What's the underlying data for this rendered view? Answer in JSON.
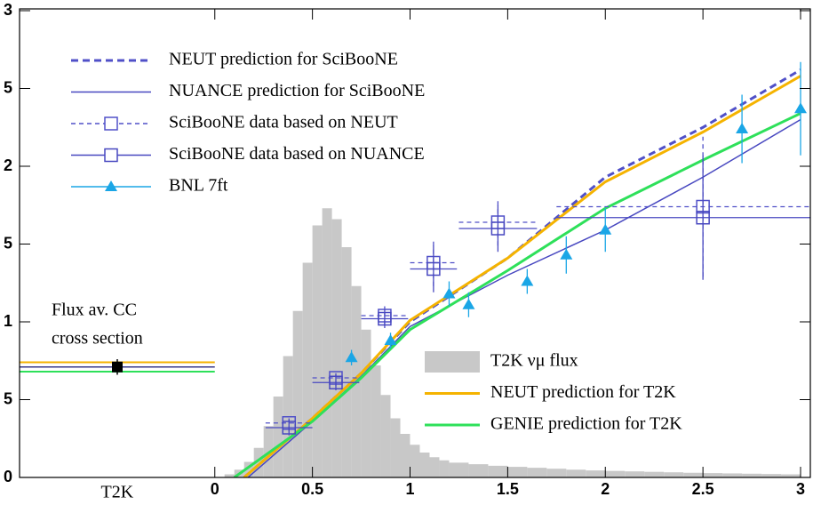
{
  "chart_data": {
    "type": "line",
    "xlim": [
      -1,
      3.05
    ],
    "xticks": [
      0,
      0.5,
      1,
      1.5,
      2,
      2.5,
      3
    ],
    "ylim": [
      0,
      3
    ],
    "yticks": [
      0,
      {
        "value": 0.5,
        "label": "5"
      },
      1,
      {
        "value": 1.5,
        "label": "5"
      },
      2,
      {
        "value": 2.5,
        "label": "5"
      },
      3
    ],
    "flux_average": {
      "category": "T2K",
      "annotation": [
        "Flux av. CC",
        "cross section"
      ],
      "value": 0.71,
      "error": 0.05,
      "color": "#000000"
    },
    "series": [
      {
        "name": "NEUT prediction for SciBooNE",
        "kind": "line",
        "dashed": true,
        "color": "#5050c8",
        "legend": "upper left",
        "x": [
          0.15,
          0.5,
          0.75,
          1.0,
          1.5,
          2.0,
          2.5,
          3.0
        ],
        "values": [
          0,
          0.38,
          0.67,
          1.0,
          1.41,
          1.93,
          2.25,
          2.62
        ]
      },
      {
        "name": "NUANCE prediction for SciBooNE",
        "kind": "line",
        "dashed": false,
        "color": "#4848c0",
        "legend": "upper left",
        "x": [
          0.17,
          0.5,
          0.75,
          1.0,
          1.5,
          2.0,
          2.5,
          3.0
        ],
        "values": [
          0,
          0.36,
          0.65,
          0.97,
          1.3,
          1.59,
          1.93,
          2.3
        ]
      },
      {
        "name": "SciBooNE data based on NEUT",
        "kind": "errorbar",
        "marker": "square",
        "dashed": true,
        "color": "#5050c8",
        "legend": "upper left",
        "x": [
          0.38,
          0.62,
          0.87,
          1.12,
          1.45,
          2.5
        ],
        "values": [
          0.35,
          0.64,
          1.04,
          1.38,
          1.64,
          1.74
        ],
        "xerr": [
          0.12,
          0.12,
          0.12,
          0.12,
          0.2,
          0.75
        ],
        "yerr": [
          0.05,
          0.05,
          0.06,
          0.15,
          0.15,
          0.45
        ]
      },
      {
        "name": "SciBooNE data based on NUANCE",
        "kind": "errorbar",
        "marker": "square",
        "dashed": false,
        "color": "#4848c0",
        "legend": "upper left",
        "x": [
          0.38,
          0.62,
          0.87,
          1.12,
          1.45,
          2.5
        ],
        "values": [
          0.32,
          0.61,
          1.02,
          1.34,
          1.6,
          1.67
        ],
        "xerr": [
          0.12,
          0.12,
          0.12,
          0.12,
          0.2,
          0.75
        ],
        "yerr": [
          0.05,
          0.05,
          0.06,
          0.15,
          0.15,
          0.4
        ]
      },
      {
        "name": "BNL 7ft",
        "kind": "errorbar",
        "marker": "triangle",
        "dashed": false,
        "color": "#1aa6e6",
        "legend": "upper left",
        "x": [
          0.7,
          0.9,
          1.2,
          1.3,
          1.6,
          1.8,
          2.0,
          2.7,
          3.0
        ],
        "values": [
          0.77,
          0.88,
          1.18,
          1.11,
          1.26,
          1.43,
          1.59,
          2.24,
          2.37
        ],
        "xerr": [
          0,
          0,
          0,
          0,
          0,
          0,
          0,
          0,
          0
        ],
        "yerr": [
          0.05,
          0.05,
          0.08,
          0.08,
          0.08,
          0.12,
          0.14,
          0.22,
          0.3
        ]
      },
      {
        "name": "T2K νμ flux",
        "kind": "hist",
        "color": "#c8c8c8",
        "legend": "lower right",
        "bins": [
          0,
          0.05,
          0.1,
          0.15,
          0.2,
          0.25,
          0.3,
          0.35,
          0.4,
          0.45,
          0.5,
          0.55,
          0.6,
          0.65,
          0.7,
          0.75,
          0.8,
          0.85,
          0.9,
          0.95,
          1.0,
          1.05,
          1.1,
          1.15,
          1.2,
          1.3,
          1.4,
          1.5,
          1.6,
          1.7,
          1.8,
          1.9,
          2.0,
          2.1,
          2.2,
          2.3,
          2.4,
          2.5,
          2.6,
          2.7,
          2.8,
          2.9,
          3.0
        ],
        "values": [
          0,
          0.02,
          0.05,
          0.1,
          0.19,
          0.33,
          0.52,
          0.78,
          1.07,
          1.38,
          1.62,
          1.73,
          1.66,
          1.48,
          1.23,
          0.95,
          0.72,
          0.53,
          0.38,
          0.28,
          0.21,
          0.16,
          0.13,
          0.11,
          0.095,
          0.085,
          0.075,
          0.068,
          0.062,
          0.056,
          0.05,
          0.045,
          0.042,
          0.039,
          0.036,
          0.033,
          0.03,
          0.028,
          0.026,
          0.024,
          0.022,
          0.02
        ]
      },
      {
        "name": "NEUT prediction for T2K",
        "kind": "line",
        "dashed": false,
        "color": "#f5b300",
        "legend": "lower right",
        "flux_avg": 0.74,
        "x": [
          0.15,
          0.5,
          0.75,
          1.0,
          1.5,
          2.0,
          2.5,
          3.0
        ],
        "values": [
          0,
          0.38,
          0.67,
          1.01,
          1.41,
          1.9,
          2.22,
          2.58
        ]
      },
      {
        "name": "GENIE prediction for T2K",
        "kind": "line",
        "dashed": false,
        "color": "#2ee05a",
        "legend": "lower right",
        "flux_avg": 0.68,
        "x": [
          0.1,
          0.5,
          0.75,
          1.0,
          1.5,
          2.0,
          2.5,
          3.0
        ],
        "values": [
          0,
          0.36,
          0.64,
          0.95,
          1.33,
          1.73,
          2.04,
          2.34
        ]
      }
    ]
  }
}
